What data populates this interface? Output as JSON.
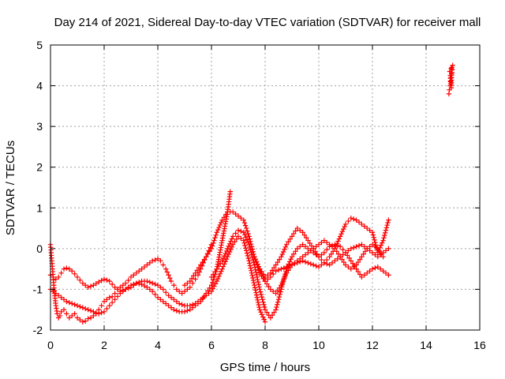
{
  "chart_data": {
    "type": "scatter",
    "title": "Day 214 of 2021, Sidereal Day-to-day VTEC variation (SDTVAR) for receiver mall",
    "xlabel": "GPS time / hours",
    "ylabel": "SDTVAR / TECUs",
    "xlim": [
      0,
      16
    ],
    "ylim": [
      -2,
      5
    ],
    "xticks": [
      "0",
      "2",
      "4",
      "6",
      "8",
      "10",
      "12",
      "14",
      "16"
    ],
    "yticks": [
      "-2",
      "-1",
      "0",
      "1",
      "2",
      "3",
      "4",
      "5"
    ],
    "grid": true,
    "marker": "plus",
    "colors": {
      "series": "#ff0000",
      "grid": "#a0a0a0",
      "axis": "#000000"
    },
    "series": [
      {
        "x": [
          0.0,
          0.05,
          0.1,
          0.15,
          0.2,
          0.25,
          0.3,
          0.35,
          0.4,
          0.5,
          0.6,
          0.7,
          0.8,
          0.9,
          1.0,
          1.1,
          1.2,
          1.3,
          1.4,
          1.5,
          1.6,
          1.7,
          1.8,
          1.9,
          2.0,
          2.1,
          2.2,
          2.3,
          2.4,
          2.5,
          2.6,
          2.7,
          2.8,
          2.9,
          3.0,
          3.1,
          3.2,
          3.3,
          3.4,
          3.5,
          3.6,
          3.7,
          3.8,
          3.9,
          4.0,
          4.1,
          4.2,
          4.3,
          4.4,
          4.5,
          4.6,
          4.7,
          4.8,
          4.9,
          5.0,
          5.1,
          5.2,
          5.3,
          5.4,
          5.5,
          5.6,
          5.7,
          5.8,
          5.9,
          6.0
        ],
        "y": [
          0.1,
          -0.3,
          -0.7,
          -1.1,
          -1.4,
          -1.6,
          -1.7,
          -1.65,
          -1.55,
          -1.5,
          -1.6,
          -1.7,
          -1.65,
          -1.6,
          -1.7,
          -1.75,
          -1.8,
          -1.78,
          -1.72,
          -1.7,
          -1.65,
          -1.6,
          -1.5,
          -1.4,
          -1.3,
          -1.25,
          -1.2,
          -1.18,
          -1.1,
          -1.0,
          -0.95,
          -0.9,
          -0.85,
          -0.78,
          -0.7,
          -0.65,
          -0.6,
          -0.55,
          -0.5,
          -0.45,
          -0.4,
          -0.35,
          -0.3,
          -0.28,
          -0.25,
          -0.3,
          -0.4,
          -0.5,
          -0.65,
          -0.8,
          -0.9,
          -1.0,
          -1.05,
          -1.1,
          -1.05,
          -1.0,
          -0.95,
          -0.85,
          -0.75,
          -0.65,
          -0.5,
          -0.35,
          -0.2,
          -0.05,
          0.1
        ]
      },
      {
        "x": [
          0.0,
          0.1,
          0.2,
          0.3,
          0.4,
          0.5,
          0.6,
          0.7,
          0.8,
          0.9,
          1.0,
          1.2,
          1.4,
          1.6,
          1.8,
          2.0,
          2.2,
          2.4,
          2.6,
          2.8,
          3.0,
          3.2,
          3.4,
          3.6,
          3.8,
          4.0,
          4.2,
          4.4,
          4.6,
          4.8,
          5.0,
          5.2,
          5.4,
          5.6,
          5.8,
          6.0,
          6.2,
          6.4,
          6.6,
          6.7
        ],
        "y": [
          -0.65,
          -0.7,
          -0.75,
          -0.7,
          -0.6,
          -0.5,
          -0.48,
          -0.5,
          -0.55,
          -0.62,
          -0.7,
          -0.85,
          -0.95,
          -0.9,
          -0.82,
          -0.75,
          -0.8,
          -0.95,
          -1.05,
          -1.0,
          -0.9,
          -0.85,
          -0.88,
          -0.95,
          -1.05,
          -1.2,
          -1.3,
          -1.4,
          -1.5,
          -1.55,
          -1.55,
          -1.5,
          -1.4,
          -1.3,
          -1.1,
          -0.9,
          -0.5,
          0.2,
          0.9,
          1.4
        ]
      },
      {
        "x": [
          0.0,
          0.2,
          0.4,
          0.6,
          0.8,
          1.0,
          1.2,
          1.4,
          1.6,
          1.8,
          2.0,
          2.2,
          2.4,
          2.6,
          2.8,
          3.0,
          3.2,
          3.4,
          3.6,
          3.8,
          4.0,
          4.2,
          4.4,
          4.6,
          4.8,
          5.0,
          5.2,
          5.4,
          5.6,
          5.8,
          6.0,
          6.2,
          6.4,
          6.6,
          6.8,
          7.0,
          7.2,
          7.4,
          7.6,
          7.8,
          8.0
        ],
        "y": [
          -1.0,
          -1.1,
          -1.2,
          -1.3,
          -1.35,
          -1.4,
          -1.45,
          -1.5,
          -1.55,
          -1.6,
          -1.55,
          -1.4,
          -1.25,
          -1.1,
          -1.0,
          -0.95,
          -0.85,
          -0.8,
          -0.8,
          -0.85,
          -0.9,
          -1.0,
          -1.15,
          -1.25,
          -1.35,
          -1.4,
          -1.4,
          -1.35,
          -1.25,
          -1.15,
          -1.05,
          -0.8,
          -0.5,
          -0.2,
          0.1,
          0.3,
          0.2,
          -0.3,
          -0.9,
          -1.5,
          -1.8
        ]
      },
      {
        "x": [
          5.0,
          5.2,
          5.4,
          5.6,
          5.8,
          6.0,
          6.2,
          6.4,
          6.6,
          6.8,
          7.0,
          7.2,
          7.4,
          7.6,
          7.8,
          8.0,
          8.2,
          8.4,
          8.6,
          8.8,
          9.0,
          9.2,
          9.4,
          9.6,
          9.8,
          10.0,
          10.2,
          10.4,
          10.6,
          10.8,
          11.0,
          11.2,
          11.4,
          11.6,
          11.8,
          12.0,
          12.2,
          12.4,
          12.6
        ],
        "y": [
          -0.9,
          -0.8,
          -0.6,
          -0.4,
          -0.2,
          0.0,
          0.4,
          0.7,
          0.9,
          0.9,
          0.8,
          0.7,
          0.3,
          -0.2,
          -0.6,
          -0.8,
          -0.7,
          -0.55,
          -0.5,
          -0.45,
          -0.4,
          -0.35,
          -0.3,
          -0.35,
          -0.4,
          -0.45,
          -0.35,
          -0.2,
          0.0,
          0.3,
          0.6,
          0.75,
          0.7,
          0.6,
          0.5,
          0.4,
          -0.1,
          0.2,
          0.7
        ]
      },
      {
        "x": [
          6.0,
          6.2,
          6.4,
          6.6,
          6.8,
          7.0,
          7.2,
          7.4,
          7.6,
          7.8,
          8.0,
          8.2,
          8.4,
          8.6,
          8.8,
          9.0,
          9.2,
          9.4,
          9.6,
          9.8,
          10.0,
          10.2,
          10.4,
          10.6,
          10.8,
          11.0,
          11.2,
          11.4,
          11.6,
          11.8,
          12.0,
          12.2,
          12.4,
          12.6
        ],
        "y": [
          -0.7,
          -0.5,
          -0.3,
          0.0,
          0.3,
          0.45,
          0.4,
          0.1,
          -0.4,
          -1.0,
          -1.5,
          -1.7,
          -1.5,
          -1.0,
          -0.5,
          -0.2,
          0.0,
          0.1,
          0.0,
          -0.1,
          -0.2,
          -0.1,
          0.05,
          0.1,
          0.05,
          -0.1,
          -0.3,
          -0.5,
          -0.7,
          -0.6,
          -0.5,
          -0.45,
          -0.55,
          -0.65
        ]
      },
      {
        "x": [
          7.6,
          7.8,
          8.0,
          8.2,
          8.4,
          8.6,
          8.8,
          9.0,
          9.2,
          9.4,
          9.6,
          9.8,
          10.0,
          10.2,
          10.4,
          10.6,
          10.8,
          11.0,
          11.2,
          11.4,
          11.6,
          11.8,
          12.0,
          12.2,
          12.4,
          12.6
        ],
        "y": [
          -0.2,
          -0.5,
          -0.7,
          -0.6,
          -0.4,
          -0.2,
          0.1,
          0.3,
          0.5,
          0.4,
          0.2,
          0.0,
          -0.2,
          -0.35,
          -0.4,
          -0.3,
          -0.2,
          -0.1,
          0.0,
          0.05,
          0.1,
          0.0,
          -0.1,
          -0.2,
          -0.1,
          0.0
        ]
      },
      {
        "x": [
          7.8,
          8.0,
          8.2,
          8.4,
          8.6,
          8.8,
          9.0,
          9.2,
          9.4,
          9.6,
          9.8,
          10.0,
          10.2,
          10.4,
          10.6,
          10.8,
          11.0,
          11.2,
          11.4,
          11.6,
          11.8,
          12.0,
          12.2,
          12.4
        ],
        "y": [
          -0.5,
          -0.8,
          -1.0,
          -1.1,
          -0.9,
          -0.6,
          -0.4,
          -0.3,
          -0.2,
          -0.1,
          0.0,
          0.1,
          0.2,
          0.1,
          0.0,
          -0.2,
          -0.4,
          -0.5,
          -0.4,
          -0.2,
          0.0,
          0.1,
          0.0,
          -0.2
        ]
      },
      {
        "x": [
          14.85,
          14.87,
          14.89,
          14.91,
          14.93,
          14.95,
          14.97,
          14.99,
          14.88,
          14.9,
          14.92,
          14.94,
          14.96
        ],
        "y": [
          3.8,
          3.9,
          4.0,
          4.1,
          4.2,
          4.3,
          4.4,
          4.5,
          4.35,
          4.25,
          4.05,
          3.95,
          4.45
        ]
      }
    ]
  }
}
